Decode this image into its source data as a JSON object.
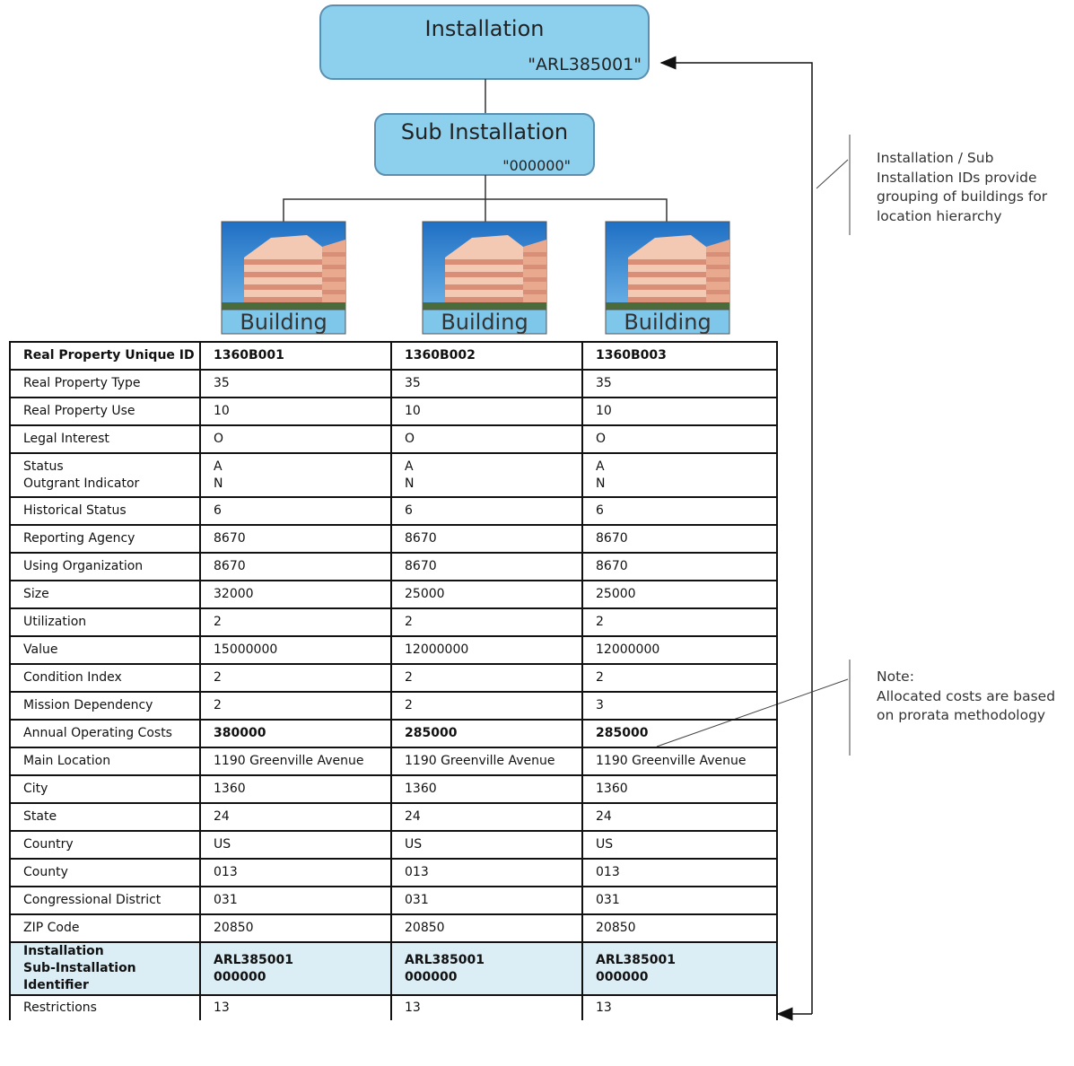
{
  "installation": {
    "title": "Installation",
    "id": "\"ARL385001\""
  },
  "sub_installation": {
    "title": "Sub Installation",
    "id": "\"000000\""
  },
  "buildings": [
    "Building",
    "Building",
    "Building"
  ],
  "notes": [
    {
      "lines": [
        "Installation / Sub",
        "Installation IDs provide",
        "grouping of buildings for",
        "location hierarchy"
      ]
    },
    {
      "lines": [
        "Note:",
        "Allocated costs are based",
        "on prorata methodology"
      ]
    }
  ],
  "table": {
    "rows": [
      [
        "Real Property Unique ID",
        "1360B001",
        "1360B002",
        "1360B003"
      ],
      [
        "Real Property Type",
        "35",
        "35",
        "35"
      ],
      [
        "Real Property Use",
        "10",
        "10",
        "10"
      ],
      [
        "Legal Interest",
        "O",
        "O",
        "O"
      ],
      [
        "Status\nOutgrant Indicator",
        "A\nN",
        "A\nN",
        "A\nN"
      ],
      [
        "Historical Status",
        "6",
        "6",
        "6"
      ],
      [
        "Reporting Agency",
        "8670",
        "8670",
        "8670"
      ],
      [
        "Using Organization",
        "8670",
        "8670",
        "8670"
      ],
      [
        "Size",
        "32000",
        "25000",
        "25000"
      ],
      [
        "Utilization",
        "2",
        "2",
        "2"
      ],
      [
        "Value",
        "15000000",
        "12000000",
        "12000000"
      ],
      [
        "Condition Index",
        "2",
        "2",
        "2"
      ],
      [
        "Mission Dependency",
        "2",
        "2",
        "3"
      ],
      [
        "Annual Operating Costs",
        "380000",
        "285000",
        "285000"
      ],
      [
        "Main Location",
        "1190 Greenville Avenue",
        "1190 Greenville Avenue",
        "1190 Greenville Avenue"
      ],
      [
        "City",
        "1360",
        "1360",
        "1360"
      ],
      [
        "State",
        "24",
        "24",
        "24"
      ],
      [
        "Country",
        "US",
        "US",
        "US"
      ],
      [
        "County",
        "013",
        "013",
        "013"
      ],
      [
        "Congressional District",
        "031",
        "031",
        "031"
      ],
      [
        "ZIP Code",
        "20850",
        "20850",
        "20850"
      ],
      [
        "Installation\nSub-Installation Identifier",
        "ARL385001\n000000",
        "ARL385001\n000000",
        "ARL385001\n000000"
      ],
      [
        "Restrictions",
        "13",
        "13",
        "13"
      ]
    ]
  }
}
